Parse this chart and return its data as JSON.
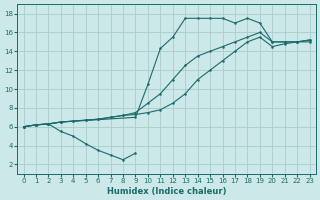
{
  "xlabel": "Humidex (Indice chaleur)",
  "bg_color": "#cce8e8",
  "grid_color": "#aacccc",
  "line_color": "#1a6b6b",
  "xlim": [
    -0.5,
    23.5
  ],
  "ylim": [
    1.0,
    19.0
  ],
  "xticks": [
    0,
    1,
    2,
    3,
    4,
    5,
    6,
    7,
    8,
    9,
    10,
    11,
    12,
    13,
    14,
    15,
    16,
    17,
    18,
    19,
    20,
    21,
    22,
    23
  ],
  "yticks": [
    2,
    4,
    6,
    8,
    10,
    12,
    14,
    16,
    18
  ],
  "curve_dip_x": [
    0,
    1,
    2,
    3,
    4,
    5,
    6,
    7,
    8,
    9
  ],
  "curve_dip_y": [
    6.0,
    6.2,
    6.3,
    5.5,
    5.0,
    4.2,
    3.5,
    3.0,
    2.5,
    3.2
  ],
  "curve_upper_x": [
    0,
    1,
    2,
    3,
    9,
    10,
    11,
    12,
    13,
    14,
    15,
    16,
    17,
    18,
    19,
    20,
    21,
    22,
    23
  ],
  "curve_upper_y": [
    6.0,
    6.2,
    6.3,
    6.5,
    7.0,
    10.5,
    14.3,
    15.5,
    17.5,
    17.5,
    17.5,
    17.5,
    17.0,
    17.5,
    17.0,
    15.0,
    15.0,
    15.0,
    15.0
  ],
  "curve_mid_x": [
    0,
    1,
    2,
    3,
    4,
    5,
    6,
    7,
    8,
    9,
    10,
    11,
    12,
    13,
    14,
    15,
    16,
    17,
    18,
    19,
    20,
    21,
    22,
    23
  ],
  "curve_mid_y": [
    6.0,
    6.2,
    6.3,
    6.5,
    6.6,
    6.7,
    6.8,
    7.0,
    7.2,
    7.5,
    8.5,
    9.5,
    11.0,
    12.5,
    13.5,
    14.0,
    14.5,
    15.0,
    15.5,
    16.0,
    15.0,
    15.0,
    15.0,
    15.2
  ],
  "curve_low_x": [
    0,
    1,
    2,
    3,
    4,
    5,
    6,
    7,
    8,
    9,
    10,
    11,
    12,
    13,
    14,
    15,
    16,
    17,
    18,
    19,
    20,
    21,
    22,
    23
  ],
  "curve_low_y": [
    6.0,
    6.2,
    6.3,
    6.5,
    6.6,
    6.7,
    6.8,
    7.0,
    7.2,
    7.3,
    7.5,
    7.8,
    8.5,
    9.5,
    11.0,
    12.0,
    13.0,
    14.0,
    15.0,
    15.5,
    14.5,
    14.8,
    15.0,
    15.2
  ]
}
